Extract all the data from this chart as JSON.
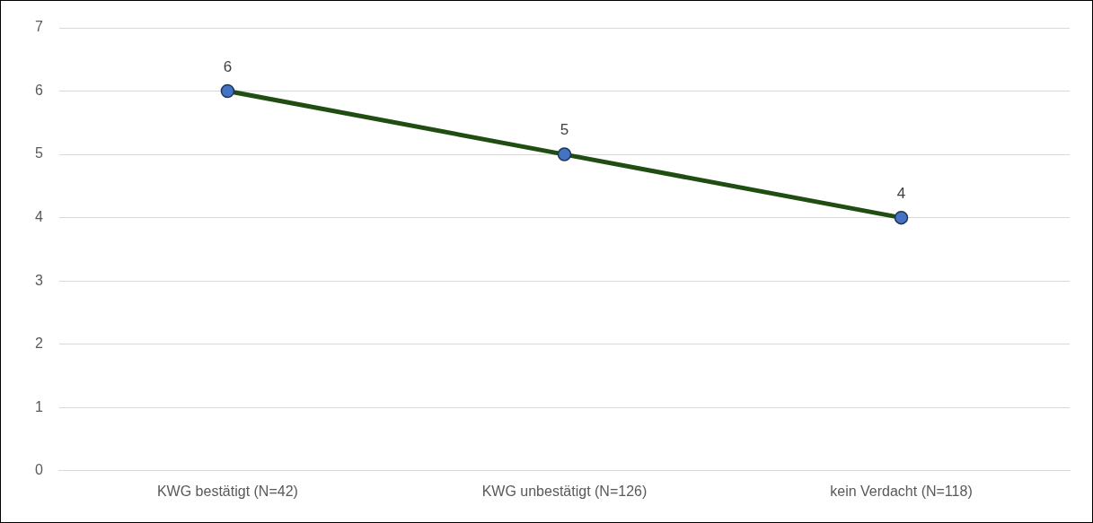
{
  "chart_data": {
    "type": "line",
    "categories": [
      "KWG bestätigt (N=42)",
      "KWG unbestätigt (N=126)",
      "kein Verdacht (N=118)"
    ],
    "series": [
      {
        "color": "#1f4d12",
        "values": [
          6,
          5,
          4
        ]
      }
    ],
    "marker": "circle",
    "line_style": "solid",
    "ylim": [
      0,
      7
    ],
    "yticks": [
      0,
      1,
      2,
      3,
      4,
      5,
      6,
      7
    ],
    "grid": "y",
    "legend": false,
    "data_labels": true
  }
}
